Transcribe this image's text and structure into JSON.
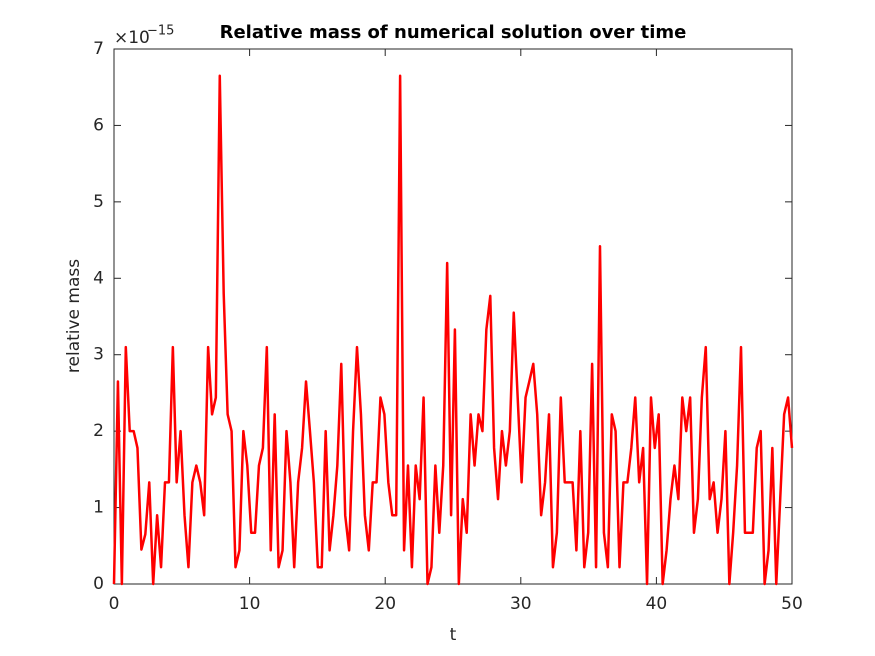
{
  "chart_data": {
    "type": "line",
    "title": "Relative mass of numerical solution over time",
    "x_label": "t",
    "y_label": "relative mass",
    "y_multiplier": {
      "base": "×10",
      "exponent": "−15"
    },
    "xlim": [
      0,
      50
    ],
    "xticks": [
      0,
      10,
      20,
      30,
      40,
      50
    ],
    "ylim": [
      0,
      7
    ],
    "yticks": [
      0,
      1,
      2,
      3,
      4,
      5,
      6,
      7
    ],
    "grid": false,
    "box": true,
    "x": [
      0,
      0.29,
      0.58,
      0.87,
      1.16,
      1.45,
      1.73,
      2.02,
      2.31,
      2.6,
      2.89,
      3.18,
      3.47,
      3.76,
      4.05,
      4.34,
      4.62,
      4.91,
      5.2,
      5.49,
      5.78,
      6.07,
      6.36,
      6.65,
      6.94,
      7.23,
      7.51,
      7.8,
      8.09,
      8.38,
      8.67,
      8.96,
      9.25,
      9.54,
      9.83,
      10.12,
      10.4,
      10.69,
      10.98,
      11.27,
      11.56,
      11.85,
      12.14,
      12.43,
      12.72,
      13.01,
      13.29,
      13.58,
      13.87,
      14.16,
      14.45,
      14.74,
      15.03,
      15.32,
      15.61,
      15.9,
      16.18,
      16.47,
      16.76,
      17.05,
      17.34,
      17.63,
      17.92,
      18.21,
      18.5,
      18.79,
      19.08,
      19.36,
      19.65,
      19.94,
      20.23,
      20.52,
      20.81,
      21.1,
      21.39,
      21.68,
      21.97,
      22.25,
      22.54,
      22.83,
      23.12,
      23.41,
      23.7,
      23.99,
      24.28,
      24.57,
      24.86,
      25.14,
      25.43,
      25.72,
      26.01,
      26.3,
      26.59,
      26.88,
      27.17,
      27.46,
      27.75,
      28.03,
      28.32,
      28.61,
      28.9,
      29.19,
      29.48,
      29.77,
      30.06,
      30.35,
      30.64,
      30.92,
      31.21,
      31.5,
      31.79,
      32.08,
      32.37,
      32.66,
      32.95,
      33.24,
      33.53,
      33.82,
      34.1,
      34.39,
      34.68,
      34.97,
      35.26,
      35.55,
      35.84,
      36.13,
      36.42,
      36.71,
      36.99,
      37.28,
      37.57,
      37.86,
      38.15,
      38.44,
      38.73,
      39.02,
      39.31,
      39.6,
      39.88,
      40.17,
      40.46,
      40.75,
      41.04,
      41.33,
      41.62,
      41.91,
      42.2,
      42.49,
      42.77,
      43.06,
      43.35,
      43.64,
      43.93,
      44.22,
      44.51,
      44.8,
      45.09,
      45.38,
      45.66,
      45.95,
      46.24,
      46.53,
      46.82,
      47.11,
      47.4,
      47.69,
      47.98,
      48.27,
      48.55,
      48.84,
      49.13,
      49.42,
      49.71,
      50
    ],
    "series": [
      {
        "color": "#ff0000",
        "values": [
          0,
          2.65,
          0,
          3.1,
          2.0,
          2.0,
          1.78,
          0.45,
          0.65,
          1.33,
          0,
          0.9,
          0.22,
          1.33,
          1.33,
          3.1,
          1.33,
          2.0,
          0.9,
          0.22,
          1.33,
          1.55,
          1.33,
          0.9,
          3.1,
          2.22,
          2.44,
          6.65,
          3.8,
          2.22,
          2.0,
          0.22,
          0.44,
          2.0,
          1.55,
          0.67,
          0.67,
          1.55,
          1.78,
          3.1,
          0.44,
          2.22,
          0.22,
          0.44,
          2.0,
          1.33,
          0.22,
          1.33,
          1.78,
          2.65,
          2.0,
          1.33,
          0.22,
          0.22,
          2.0,
          0.44,
          0.9,
          1.55,
          2.88,
          0.9,
          0.44,
          2.0,
          3.1,
          2.22,
          0.9,
          0.44,
          1.33,
          1.33,
          2.44,
          2.22,
          1.33,
          0.9,
          0.9,
          6.65,
          0.44,
          1.55,
          0.22,
          1.55,
          1.11,
          2.44,
          0,
          0.22,
          1.55,
          0.67,
          1.55,
          4.2,
          0.9,
          3.33,
          0,
          1.11,
          0.67,
          2.22,
          1.55,
          2.22,
          2.0,
          3.33,
          3.77,
          1.78,
          1.11,
          2.0,
          1.55,
          2.0,
          3.55,
          2.44,
          1.33,
          2.44,
          2.66,
          2.88,
          2.22,
          0.9,
          1.33,
          2.22,
          0.22,
          0.67,
          2.44,
          1.33,
          1.33,
          1.33,
          0.44,
          2.0,
          0.22,
          0.67,
          2.88,
          0.22,
          4.42,
          0.67,
          0.22,
          2.22,
          2.0,
          0.22,
          1.33,
          1.33,
          1.78,
          2.44,
          1.33,
          1.78,
          0,
          2.44,
          1.78,
          2.22,
          0,
          0.44,
          1.11,
          1.55,
          1.11,
          2.44,
          2.0,
          2.44,
          0.67,
          1.11,
          2.44,
          3.1,
          1.11,
          1.33,
          0.67,
          1.11,
          2.0,
          0,
          0.67,
          1.55,
          3.1,
          0.67,
          0.67,
          0.67,
          1.78,
          2.0,
          0,
          0.44,
          1.78,
          0,
          1.11,
          2.22,
          2.44,
          1.78
        ]
      }
    ]
  }
}
